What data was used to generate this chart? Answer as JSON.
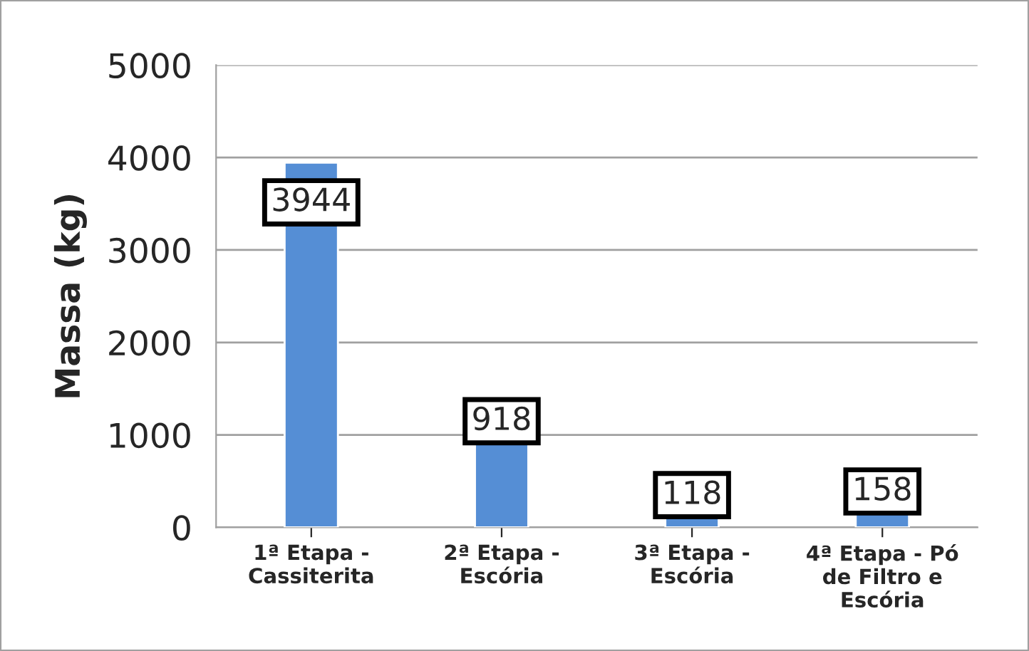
{
  "chart_data": {
    "type": "bar",
    "categories": [
      "1ª Etapa -\nCassiterita",
      "2ª Etapa -\nEscória",
      "3ª Etapa -\nEscória",
      "4ª Etapa - Pó\nde Filtro e\nEscória"
    ],
    "values": [
      3944,
      918,
      118,
      158
    ],
    "color": "#558ed5",
    "ylabel": "Massa (kg)",
    "ylim": [
      0,
      5000
    ],
    "yticks": [
      0,
      1000,
      2000,
      3000,
      4000,
      5000
    ],
    "grid": "y",
    "data_labels": true
  }
}
